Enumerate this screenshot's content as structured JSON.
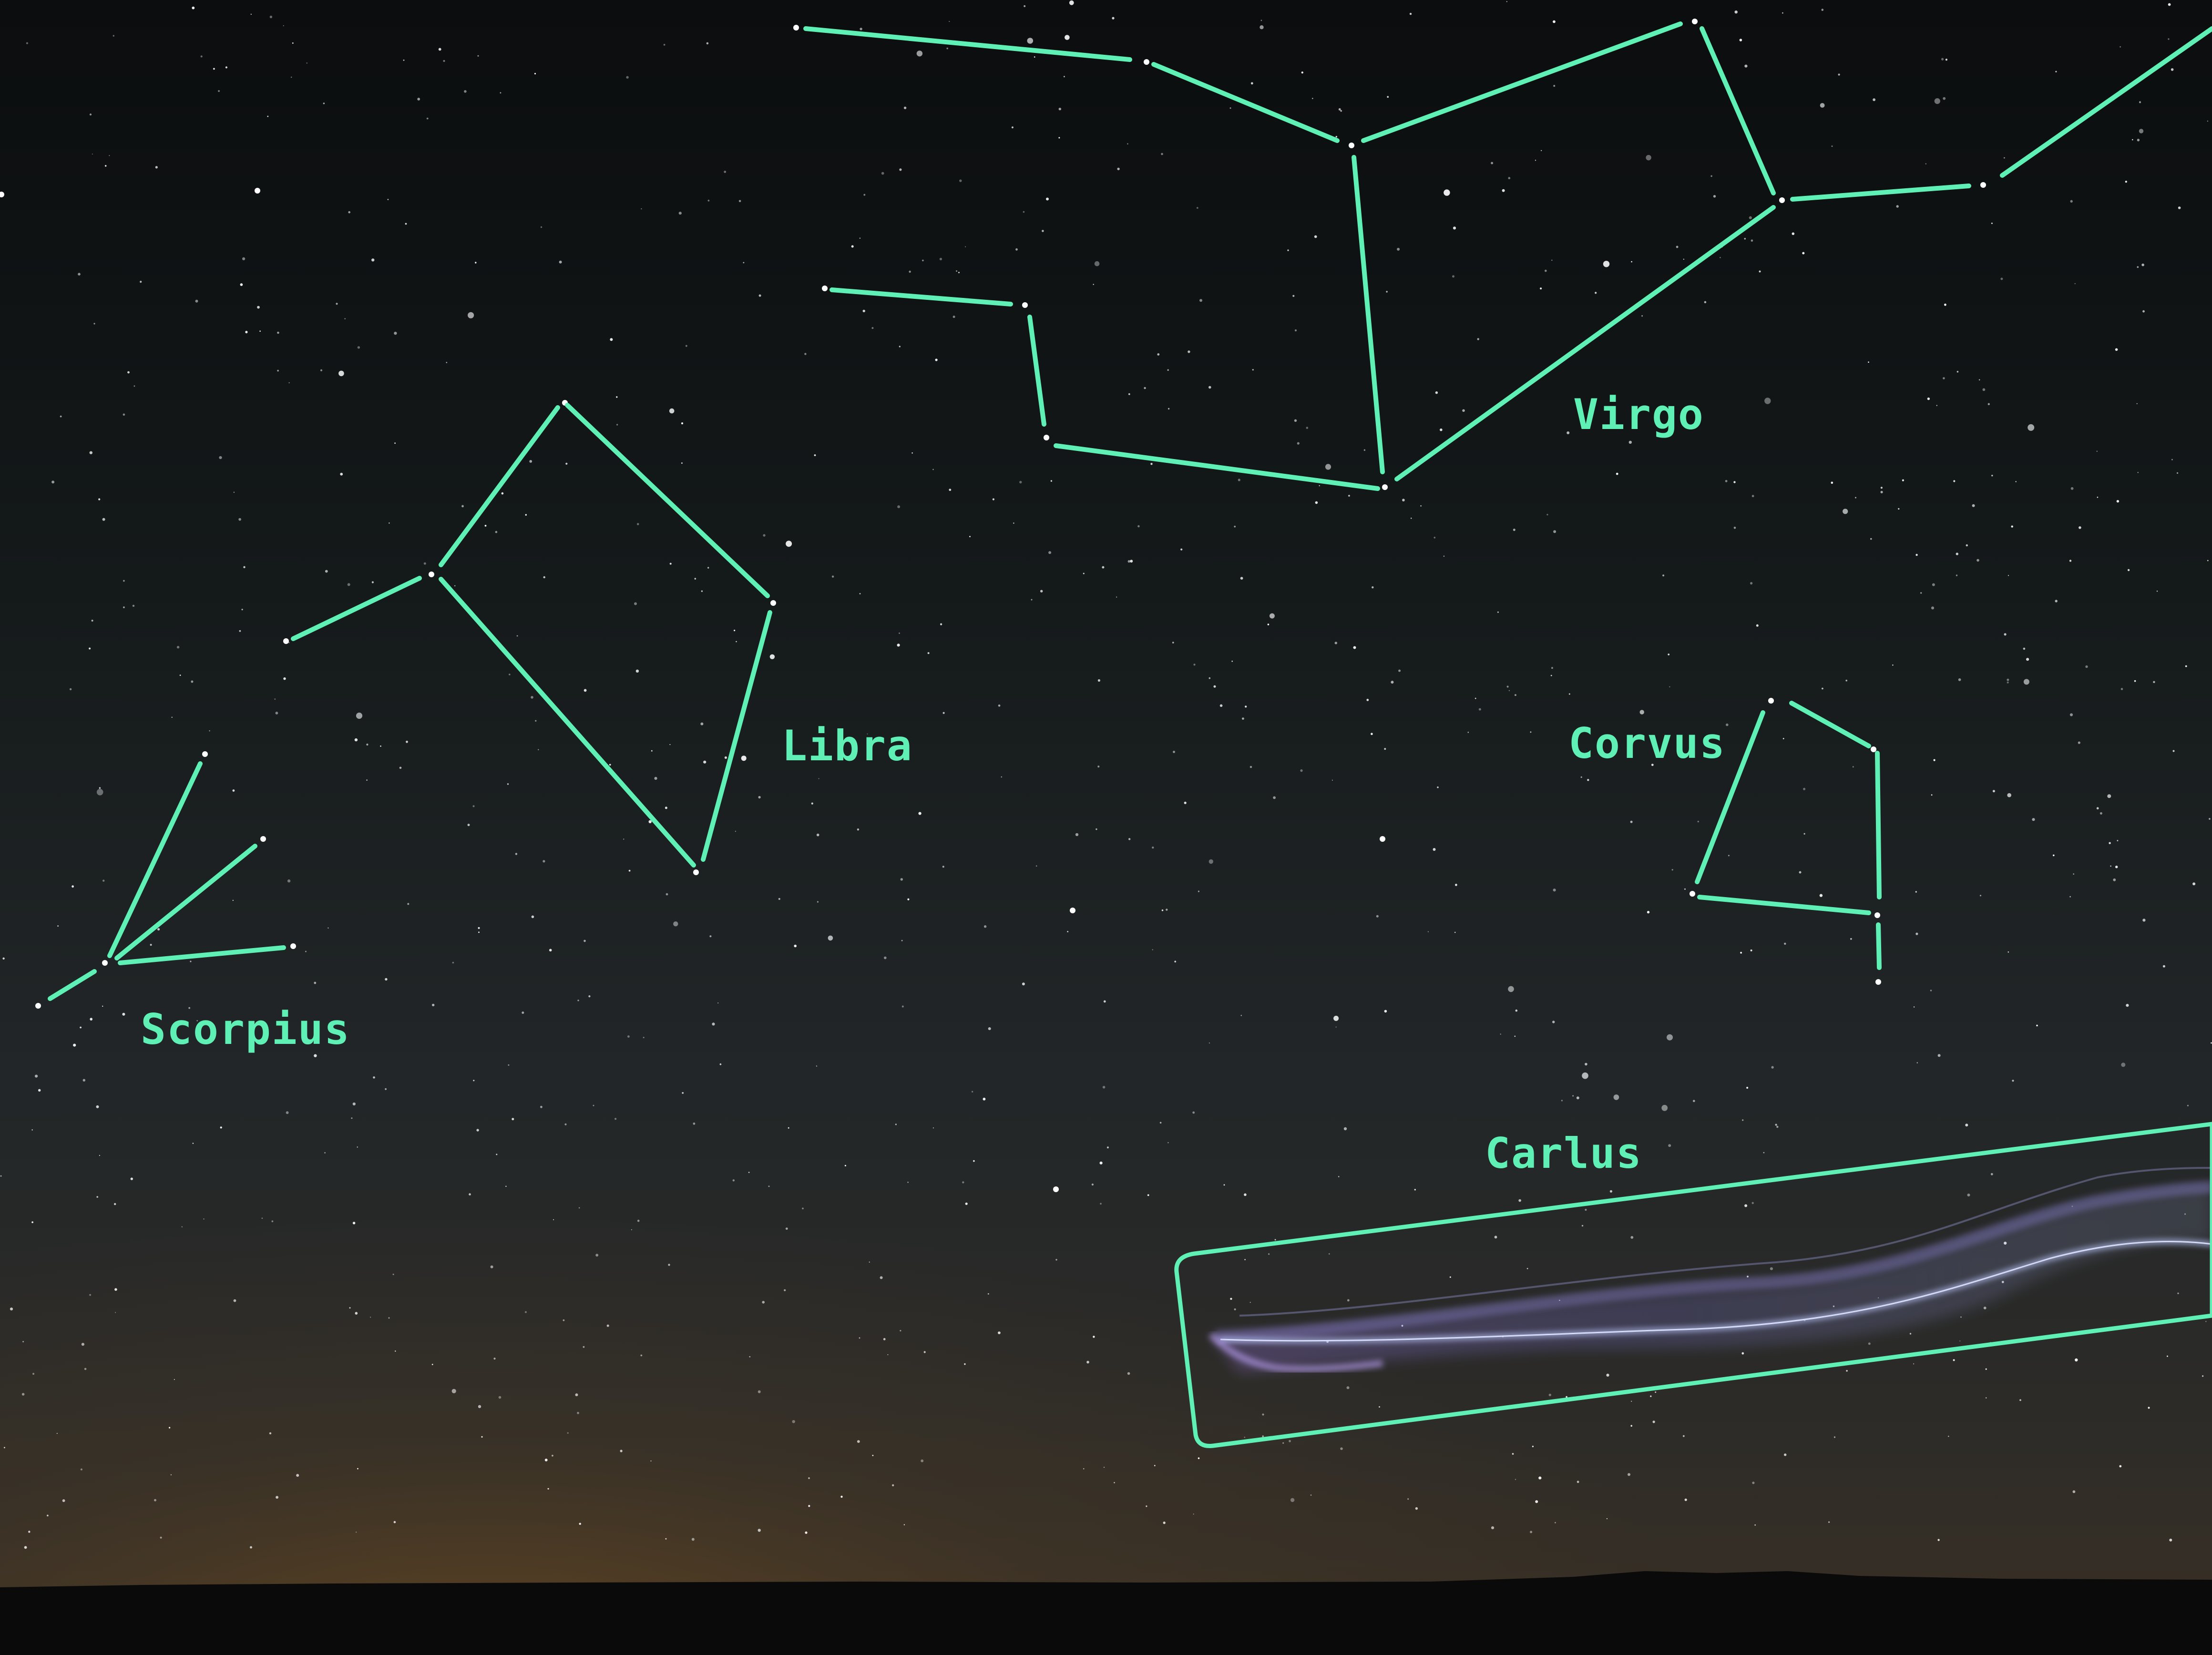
{
  "colors": {
    "overlay": "#5ef0b4",
    "sky_top": "#0c0e0f",
    "sky_mid": "#202426",
    "horizon_glow": "#4a3a26",
    "ground": "#0a0a0a",
    "streak": "#8d7ff2"
  },
  "labels": {
    "virgo": "Virgo",
    "libra": "Libra",
    "scorpius": "Scorpius",
    "corvus": "Corvus",
    "carlus": "Carlus"
  }
}
